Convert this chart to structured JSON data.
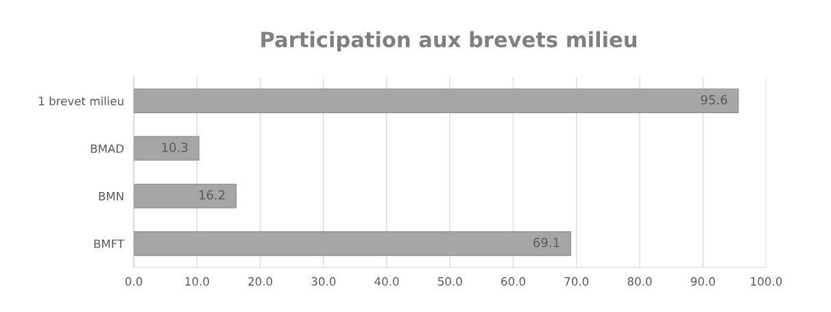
{
  "chart_data": {
    "type": "bar",
    "orientation": "horizontal",
    "title": "Participation aux brevets milieu",
    "categories": [
      "1 brevet milieu",
      "BMAD",
      "BMN",
      "BMFT"
    ],
    "values": [
      95.6,
      10.3,
      16.2,
      69.1
    ],
    "color": "#a6a6a6",
    "xlim": [
      0,
      100
    ],
    "xticks": [
      {
        "value": 0,
        "label": "0.0"
      },
      {
        "value": 10,
        "label": "10.0"
      },
      {
        "value": 20,
        "label": "20.0"
      },
      {
        "value": 30,
        "label": "30.0"
      },
      {
        "value": 40,
        "label": "40.0"
      },
      {
        "value": 50,
        "label": "50.0"
      },
      {
        "value": 60,
        "label": "60.0"
      },
      {
        "value": 70,
        "label": "70.0"
      },
      {
        "value": 80,
        "label": "80.0"
      },
      {
        "value": 90,
        "label": "90.0"
      },
      {
        "value": 100,
        "label": "100.0"
      }
    ],
    "grid": "x",
    "data_labels": true,
    "legend": false
  }
}
